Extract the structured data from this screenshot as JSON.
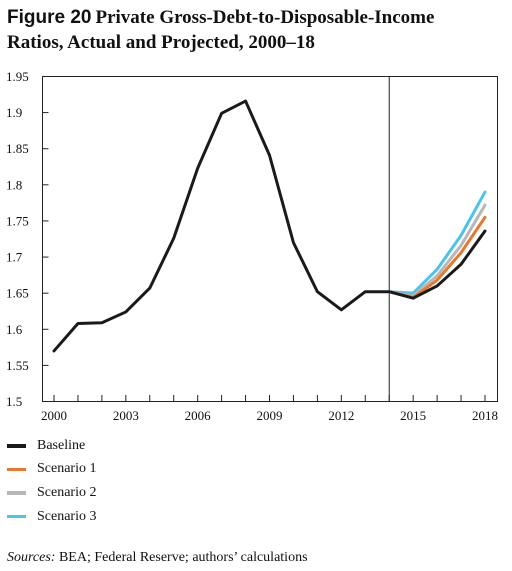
{
  "figure": {
    "number": "Figure 20",
    "title_line1": "Private Gross-Debt-to-Disposable-Income",
    "title_line2": "Ratios, Actual and Projected, 2000–18"
  },
  "source": {
    "label": "Sources:",
    "text": "BEA; Federal Reserve; authors’ calculations"
  },
  "chart_data": {
    "type": "line",
    "title": "Private Gross-Debt-to-Disposable-Income Ratios, Actual and Projected, 2000–18",
    "xlabel": "",
    "ylabel": "",
    "xlim": [
      2000,
      2018
    ],
    "ylim": [
      1.5,
      1.95
    ],
    "x_ticks": [
      2000,
      2001,
      2002,
      2003,
      2004,
      2005,
      2006,
      2007,
      2008,
      2009,
      2010,
      2011,
      2012,
      2013,
      2014,
      2015,
      2016,
      2017,
      2018
    ],
    "x_tick_labels": [
      "2000",
      "2003",
      "2006",
      "2009",
      "2012",
      "2015",
      "2018"
    ],
    "y_ticks": [
      1.5,
      1.55,
      1.6,
      1.65,
      1.7,
      1.75,
      1.8,
      1.85,
      1.9,
      1.95
    ],
    "y_tick_labels": [
      "1.5",
      "1.55",
      "1.6",
      "1.65",
      "1.7",
      "1.75",
      "1.8",
      "1.85",
      "1.9",
      "1.95"
    ],
    "vertical_line_x": 2014,
    "grid": false,
    "legend_position": "bottom-left, below chart",
    "series": [
      {
        "name": "Scenario 3",
        "color": "#4cc3e8",
        "x": [
          2014,
          2015,
          2016,
          2017,
          2018
        ],
        "values": [
          1.652,
          1.65,
          1.683,
          1.73,
          1.79
        ]
      },
      {
        "name": "Scenario 2",
        "color": "#b7b7b7",
        "x": [
          2014,
          2015,
          2016,
          2017,
          2018
        ],
        "values": [
          1.652,
          1.646,
          1.674,
          1.716,
          1.772
        ]
      },
      {
        "name": "Scenario 1",
        "color": "#e8772e",
        "x": [
          2014,
          2015,
          2016,
          2017,
          2018
        ],
        "values": [
          1.652,
          1.644,
          1.668,
          1.706,
          1.755
        ]
      },
      {
        "name": "Baseline",
        "color": "#1a1a1a",
        "x": [
          2000,
          2001,
          2002,
          2003,
          2004,
          2005,
          2006,
          2007,
          2008,
          2009,
          2010,
          2011,
          2012,
          2013,
          2014,
          2015,
          2016,
          2017,
          2018
        ],
        "values": [
          1.57,
          1.608,
          1.609,
          1.624,
          1.657,
          1.726,
          1.823,
          1.899,
          1.916,
          1.841,
          1.72,
          1.652,
          1.627,
          1.652,
          1.652,
          1.643,
          1.66,
          1.69,
          1.736
        ]
      }
    ],
    "legend_order": [
      "Baseline",
      "Scenario 1",
      "Scenario 2",
      "Scenario 3"
    ]
  }
}
